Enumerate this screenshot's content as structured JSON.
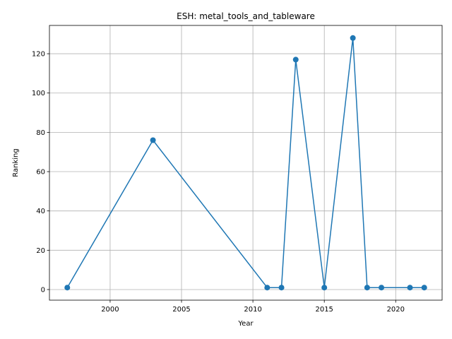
{
  "chart_data": {
    "type": "line",
    "title": "ESH: metal_tools_and_tableware",
    "xlabel": "Year",
    "ylabel": "Ranking",
    "xlim": [
      1995.75,
      2023.25
    ],
    "ylim": [
      -5.4,
      134.4
    ],
    "xticks": [
      2000,
      2005,
      2010,
      2015,
      2020
    ],
    "yticks": [
      0,
      20,
      40,
      60,
      80,
      100,
      120
    ],
    "grid": true,
    "line_color": "#1f77b4",
    "series": [
      {
        "x": [
          1997,
          2003,
          2011,
          2012,
          2013,
          2015,
          2017,
          2018,
          2019,
          2021,
          2022
        ],
        "y": [
          1,
          76,
          1,
          1,
          117,
          1,
          128,
          1,
          1,
          1,
          1
        ]
      }
    ]
  }
}
